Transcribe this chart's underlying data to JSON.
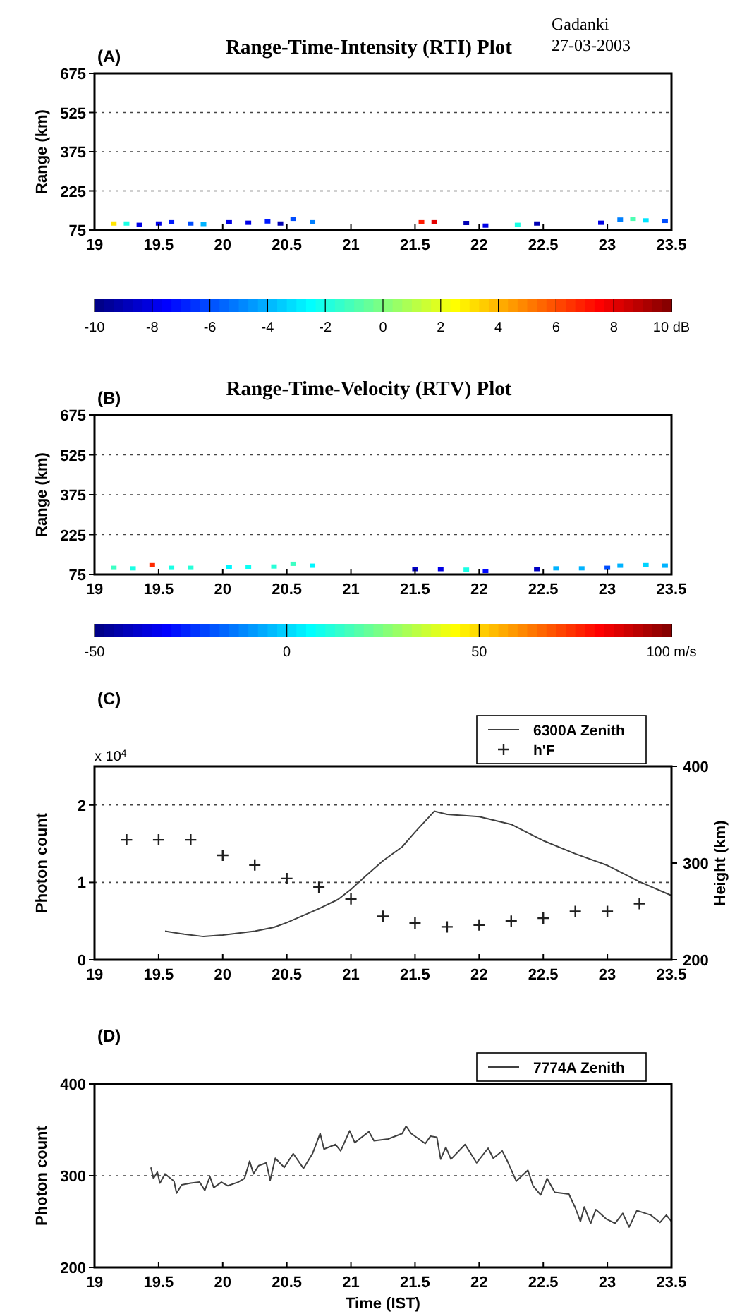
{
  "chart_data": [
    {
      "type": "scatter",
      "title": "Range-Time-Intensity (RTI) Plot",
      "annotations": [
        "(A)",
        "Gadanki",
        "27-03-2003"
      ],
      "ylabel": "Range (km)",
      "xlim": [
        19,
        23.5
      ],
      "xticks": [
        19,
        19.5,
        20,
        20.5,
        21,
        21.5,
        22,
        22.5,
        23,
        23.5
      ],
      "ylim": [
        75,
        675
      ],
      "yticks": [
        75,
        225,
        375,
        525,
        675
      ],
      "grid": "y",
      "marker": "square",
      "x": [
        19.15,
        19.25,
        19.35,
        19.5,
        19.6,
        19.75,
        19.85,
        20.05,
        20.2,
        20.35,
        20.45,
        20.55,
        20.7,
        21.55,
        21.65,
        21.9,
        22.05,
        22.3,
        22.45,
        22.95,
        23.1,
        23.2,
        23.3,
        23.45
      ],
      "values": [
        100,
        100,
        95,
        100,
        105,
        100,
        98,
        105,
        103,
        108,
        100,
        118,
        105,
        105,
        105,
        102,
        92,
        95,
        100,
        103,
        115,
        118,
        112,
        110
      ],
      "cvalues": [
        3,
        -2,
        -8,
        -8,
        -7,
        -6,
        -4,
        -8,
        -8,
        -7,
        -9,
        -6,
        -5,
        7,
        8,
        -9,
        -8,
        -2,
        -9,
        -8,
        -5,
        -1,
        -3,
        -6
      ],
      "clim": [
        -10,
        10
      ],
      "cticks": [
        -10,
        -8,
        -6,
        -4,
        -2,
        0,
        2,
        4,
        6,
        8,
        {
          "value": 10,
          "label": "10 dB"
        }
      ]
    },
    {
      "type": "scatter",
      "title": "Range-Time-Velocity (RTV) Plot",
      "annotations": [
        "(B)"
      ],
      "ylabel": "Range (km)",
      "xlim": [
        19,
        23.5
      ],
      "xticks": [
        19,
        19.5,
        20,
        20.5,
        21,
        21.5,
        22,
        22.5,
        23,
        23.5
      ],
      "ylim": [
        75,
        675
      ],
      "yticks": [
        75,
        225,
        375,
        525,
        675
      ],
      "grid": "y",
      "marker": "square",
      "x": [
        19.15,
        19.3,
        19.45,
        19.6,
        19.75,
        20.05,
        20.2,
        20.4,
        20.55,
        20.7,
        21.5,
        21.7,
        21.9,
        22.05,
        22.45,
        22.6,
        22.8,
        23.0,
        23.1,
        23.3,
        23.45
      ],
      "values": [
        100,
        98,
        110,
        100,
        100,
        103,
        102,
        105,
        115,
        108,
        95,
        95,
        93,
        88,
        95,
        98,
        98,
        100,
        108,
        110,
        108
      ],
      "cvalues": [
        15,
        10,
        75,
        10,
        12,
        5,
        8,
        12,
        15,
        5,
        -40,
        -35,
        10,
        -30,
        -40,
        -5,
        -5,
        -20,
        -5,
        0,
        -5
      ],
      "clim": [
        -50,
        100
      ],
      "cticks": [
        -50,
        0,
        50,
        {
          "value": 100,
          "label": "100 m/s"
        }
      ]
    },
    {
      "type": "line",
      "annotations": [
        "(C)",
        "x 10$^{4}$"
      ],
      "ylabel": "Photon count",
      "y2label": "Height (km)",
      "xlim": [
        19,
        23.5
      ],
      "xticks": [
        19,
        19.5,
        20,
        20.5,
        21,
        21.5,
        22,
        22.5,
        23,
        23.5
      ],
      "ylim": [
        0,
        2.5
      ],
      "yticks": [
        0,
        1,
        2
      ],
      "y2lim": [
        200,
        400
      ],
      "y2ticks": [
        200,
        300,
        400
      ],
      "grid": "y",
      "legend": "top right",
      "series": [
        {
          "name": "6300A Zenith",
          "color": "#404040",
          "x": [
            19.55,
            19.7,
            19.85,
            20.0,
            20.25,
            20.4,
            20.5,
            20.75,
            20.9,
            21.0,
            21.1,
            21.25,
            21.4,
            21.5,
            21.65,
            21.75,
            22.0,
            22.25,
            22.5,
            22.75,
            23.0,
            23.25,
            23.5
          ],
          "values": [
            0.37,
            0.33,
            0.3,
            0.32,
            0.37,
            0.42,
            0.48,
            0.66,
            0.78,
            0.91,
            1.06,
            1.28,
            1.46,
            1.65,
            1.92,
            1.88,
            1.85,
            1.75,
            1.54,
            1.37,
            1.22,
            1.01,
            0.83
          ]
        },
        {
          "name": "h'F",
          "type": "scatter",
          "axis": "y2",
          "marker": "cross",
          "color": "#202020",
          "x": [
            19.25,
            19.5,
            19.75,
            20,
            20.25,
            20.5,
            20.75,
            21,
            21.25,
            21.5,
            21.75,
            22,
            22.25,
            22.5,
            22.75,
            23,
            23.25
          ],
          "values": [
            324,
            324,
            324,
            308,
            298,
            284,
            275,
            263,
            245,
            238,
            234,
            236,
            240,
            243,
            250,
            250,
            258
          ]
        }
      ]
    },
    {
      "type": "line",
      "annotations": [
        "(D)"
      ],
      "ylabel": "Photon count",
      "xlabel": "Time (IST)",
      "xlim": [
        19,
        23.5
      ],
      "xticks": [
        19,
        19.5,
        20,
        20.5,
        21,
        21.5,
        22,
        22.5,
        23,
        23.5
      ],
      "ylim": [
        200,
        400
      ],
      "yticks": [
        200,
        300,
        400
      ],
      "grid": "y",
      "legend": "top right",
      "series": [
        {
          "name": "7774A Zenith",
          "color": "#404040",
          "x": [
            19.44,
            19.46,
            19.49,
            19.51,
            19.55,
            19.62,
            19.64,
            19.68,
            19.75,
            19.82,
            19.86,
            19.9,
            19.93,
            19.99,
            20.04,
            20.12,
            20.17,
            20.21,
            20.24,
            20.28,
            20.34,
            20.37,
            20.41,
            20.48,
            20.55,
            20.63,
            20.7,
            20.76,
            20.79,
            20.88,
            20.92,
            20.99,
            21.03,
            21.14,
            21.18,
            21.29,
            21.4,
            21.43,
            21.47,
            21.58,
            21.62,
            21.67,
            21.7,
            21.74,
            21.78,
            21.89,
            21.98,
            22.07,
            22.11,
            22.18,
            22.22,
            22.29,
            22.38,
            22.42,
            22.48,
            22.53,
            22.59,
            22.7,
            22.75,
            22.79,
            22.82,
            22.87,
            22.91,
            22.99,
            23.06,
            23.12,
            23.17,
            23.23,
            23.34,
            23.41,
            23.46,
            23.5
          ],
          "values": [
            309,
            297,
            304,
            292,
            302,
            294,
            281,
            290,
            292,
            293,
            284,
            299,
            287,
            293,
            289,
            293,
            297,
            316,
            302,
            311,
            314,
            295,
            319,
            309,
            324,
            308,
            324,
            346,
            329,
            334,
            327,
            349,
            336,
            348,
            338,
            340,
            346,
            354,
            346,
            335,
            343,
            342,
            318,
            331,
            318,
            334,
            314,
            330,
            319,
            327,
            316,
            294,
            306,
            289,
            279,
            297,
            282,
            280,
            265,
            250,
            266,
            248,
            263,
            253,
            248,
            259,
            244,
            262,
            257,
            249,
            257,
            250
          ]
        }
      ]
    }
  ]
}
